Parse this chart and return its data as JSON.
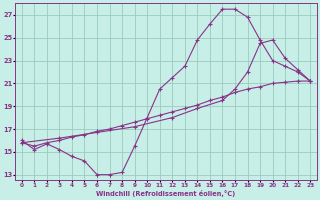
{
  "xlabel": "Windchill (Refroidissement éolien,°C)",
  "bg_color": "#c8eee8",
  "grid_color": "#99ccbb",
  "line_color": "#883388",
  "xlim": [
    -0.5,
    23.5
  ],
  "ylim": [
    12.5,
    28.0
  ],
  "yticks": [
    13,
    15,
    17,
    19,
    21,
    23,
    25,
    27
  ],
  "xticks": [
    0,
    1,
    2,
    3,
    4,
    5,
    6,
    7,
    8,
    9,
    10,
    11,
    12,
    13,
    14,
    15,
    16,
    17,
    18,
    19,
    20,
    21,
    22,
    23
  ],
  "curve1_x": [
    0,
    1,
    2,
    3,
    4,
    5,
    6,
    7,
    8,
    9,
    10,
    11,
    12,
    13,
    14,
    15,
    16,
    17,
    18,
    19,
    20,
    21,
    22,
    23
  ],
  "curve1_y": [
    16.0,
    15.2,
    15.7,
    15.2,
    14.6,
    14.2,
    13.0,
    13.0,
    13.2,
    15.5,
    18.0,
    20.5,
    21.5,
    22.5,
    24.8,
    26.2,
    27.5,
    27.5,
    26.8,
    24.8,
    23.0,
    22.5,
    22.0,
    21.2
  ],
  "curve2_x": [
    0,
    3,
    6,
    9,
    12,
    14,
    16,
    17,
    18,
    19,
    20,
    21,
    22,
    23
  ],
  "curve2_y": [
    15.8,
    16.2,
    16.7,
    17.2,
    18.0,
    18.8,
    19.5,
    20.5,
    22.0,
    24.5,
    24.8,
    23.2,
    22.2,
    21.2
  ],
  "curve3_x": [
    0,
    1,
    2,
    3,
    4,
    5,
    6,
    7,
    8,
    9,
    10,
    11,
    12,
    13,
    14,
    15,
    16,
    17,
    18,
    19,
    20,
    21,
    22,
    23
  ],
  "curve3_y": [
    15.8,
    15.5,
    15.8,
    16.0,
    16.3,
    16.5,
    16.8,
    17.0,
    17.3,
    17.6,
    17.9,
    18.2,
    18.5,
    18.8,
    19.1,
    19.5,
    19.8,
    20.2,
    20.5,
    20.7,
    21.0,
    21.1,
    21.2,
    21.2
  ]
}
